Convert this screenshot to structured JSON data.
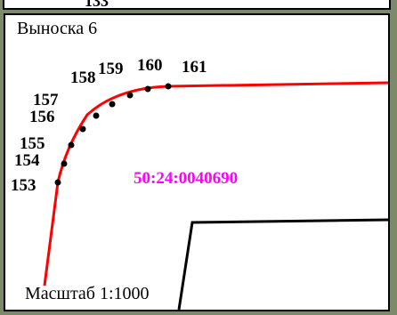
{
  "top_partial_label": "133",
  "callout_title": "Выноска 6",
  "scale": "Масштаб 1:1000",
  "cadastral_number": "50:24:0040690",
  "colors": {
    "boundary": "#ff0000",
    "cadastral": "#ff00ff",
    "frame": "#000000",
    "outside": "#7d8a6a"
  },
  "points": [
    {
      "label": "153"
    },
    {
      "label": "154"
    },
    {
      "label": "155"
    },
    {
      "label": "156"
    },
    {
      "label": "157"
    },
    {
      "label": "158"
    },
    {
      "label": "159"
    },
    {
      "label": "160"
    },
    {
      "label": "161"
    }
  ]
}
